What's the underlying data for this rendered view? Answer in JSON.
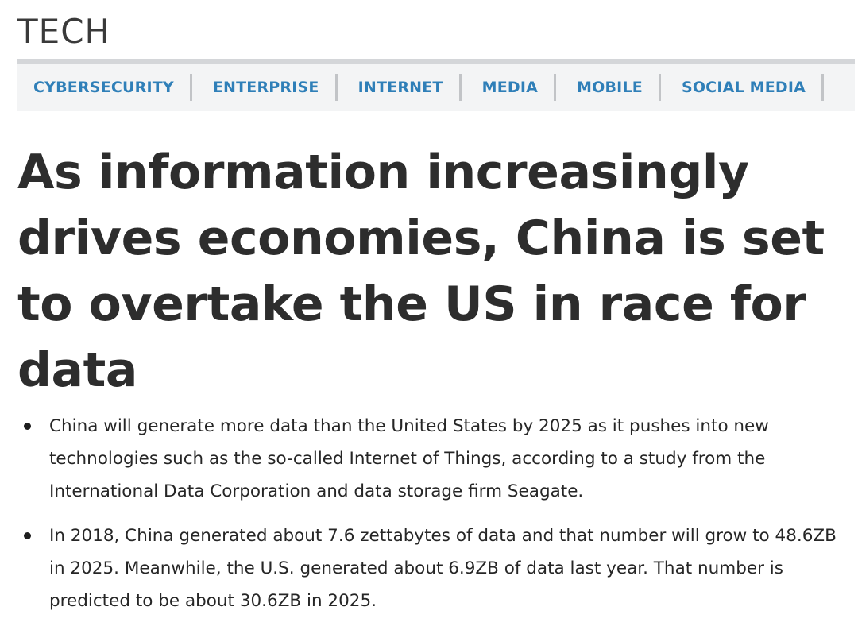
{
  "section": {
    "title": "TECH"
  },
  "subnav": {
    "items": [
      {
        "label": "CYBERSECURITY"
      },
      {
        "label": "ENTERPRISE"
      },
      {
        "label": "INTERNET"
      },
      {
        "label": "MEDIA"
      },
      {
        "label": "MOBILE"
      },
      {
        "label": "SOCIAL MEDIA"
      }
    ]
  },
  "article": {
    "headline": "As information increasingly drives economies, China is set to overtake the US in race for data",
    "bullets": [
      "China will generate more data than the United States by 2025 as it pushes into new technologies such as the so-called Internet of Things, according to a study from the International Data Corporation and data storage firm Seagate.",
      "In 2018, China generated about 7.6 zettabytes of data and that number will grow to 48.6ZB in 2025. Meanwhile, the U.S. generated about 6.9ZB of data last year. That number is predicted to be about 30.6ZB in 2025."
    ]
  },
  "colors": {
    "nav_link": "#2f7fb8",
    "nav_background": "#f3f4f5",
    "nav_top_border": "#d4d6d9",
    "headline_text": "#2d2d2d"
  }
}
